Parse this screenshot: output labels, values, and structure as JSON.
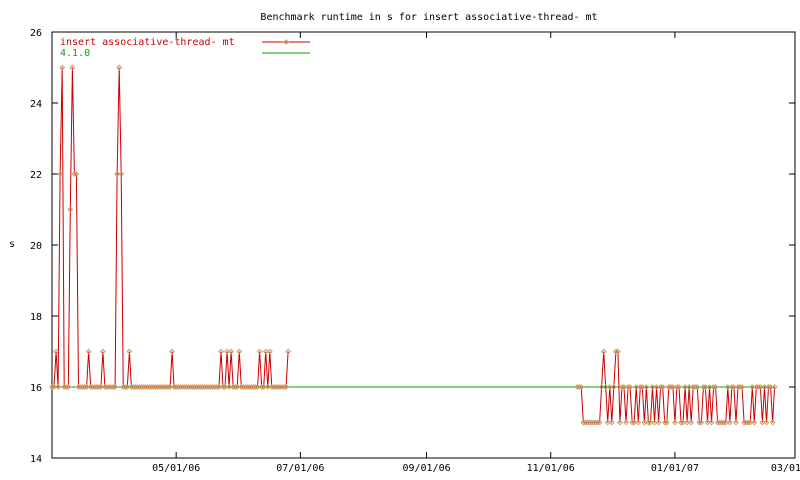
{
  "colors": {
    "series_line": "#cc0000",
    "series_marker": "#cc9966",
    "baseline": "#00aa00",
    "axis": "#000000",
    "background": "#ffffff"
  },
  "chart_data": {
    "type": "line",
    "title": "Benchmark runtime in s for insert associative-thread-  mt",
    "ylabel": "s",
    "xlabel": "",
    "ylim": [
      14,
      26
    ],
    "xlim": [
      "2006-03-01",
      "2007-03-01"
    ],
    "yticks": [
      14,
      16,
      18,
      20,
      22,
      24,
      26
    ],
    "xticks": [
      "2006-05-01",
      "2006-07-01",
      "2006-09-01",
      "2006-11-01",
      "2007-01-01",
      "2007-03-01"
    ],
    "xtick_labels": [
      "05/01/06",
      "07/01/06",
      "09/01/06",
      "11/01/06",
      "01/01/07",
      "03/01/07"
    ],
    "grid": false,
    "legend_position": "top-left",
    "series": [
      {
        "name": "insert associative-thread-  mt",
        "markers": true,
        "x": [
          "2006-03-01",
          "2006-03-02",
          "2006-03-03",
          "2006-03-04",
          "2006-03-05",
          "2006-03-06",
          "2006-03-07",
          "2006-03-08",
          "2006-03-09",
          "2006-03-10",
          "2006-03-11",
          "2006-03-12",
          "2006-03-13",
          "2006-03-14",
          "2006-03-15",
          "2006-03-16",
          "2006-03-17",
          "2006-03-18",
          "2006-03-19",
          "2006-03-20",
          "2006-03-21",
          "2006-03-22",
          "2006-03-23",
          "2006-03-24",
          "2006-03-25",
          "2006-03-26",
          "2006-03-27",
          "2006-03-28",
          "2006-03-29",
          "2006-03-30",
          "2006-03-31",
          "2006-04-01",
          "2006-04-02",
          "2006-04-03",
          "2006-04-04",
          "2006-04-05",
          "2006-04-06",
          "2006-04-07",
          "2006-04-08",
          "2006-04-09",
          "2006-04-10",
          "2006-04-11",
          "2006-04-12",
          "2006-04-13",
          "2006-04-14",
          "2006-04-15",
          "2006-04-16",
          "2006-04-17",
          "2006-04-18",
          "2006-04-19",
          "2006-04-20",
          "2006-04-21",
          "2006-04-22",
          "2006-04-23",
          "2006-04-24",
          "2006-04-25",
          "2006-04-26",
          "2006-04-27",
          "2006-04-28",
          "2006-04-29",
          "2006-04-30",
          "2006-05-01",
          "2006-05-02",
          "2006-05-03",
          "2006-05-04",
          "2006-05-05",
          "2006-05-06",
          "2006-05-07",
          "2006-05-08",
          "2006-05-09",
          "2006-05-10",
          "2006-05-11",
          "2006-05-12",
          "2006-05-13",
          "2006-05-14",
          "2006-05-15",
          "2006-05-16",
          "2006-05-17",
          "2006-05-18",
          "2006-05-19",
          "2006-05-20",
          "2006-05-21",
          "2006-05-22",
          "2006-05-23",
          "2006-05-24",
          "2006-05-25",
          "2006-05-26",
          "2006-05-27",
          "2006-05-28",
          "2006-05-29",
          "2006-05-30",
          "2006-05-31",
          "2006-06-01",
          "2006-06-02",
          "2006-06-03",
          "2006-06-04",
          "2006-06-05",
          "2006-06-06",
          "2006-06-07",
          "2006-06-08",
          "2006-06-09",
          "2006-06-10",
          "2006-06-11",
          "2006-06-12",
          "2006-06-13",
          "2006-06-14",
          "2006-06-15",
          "2006-06-16",
          "2006-06-17",
          "2006-06-18",
          "2006-06-19",
          "2006-06-20",
          "2006-06-21",
          "2006-06-22",
          "2006-06-23",
          "2006-06-24",
          "2006-06-25",
          "2006-11-14",
          "2006-11-15",
          "2006-11-16",
          "2006-11-17",
          "2006-11-18",
          "2006-11-19",
          "2006-11-20",
          "2006-11-21",
          "2006-11-22",
          "2006-11-23",
          "2006-11-24",
          "2006-11-25",
          "2006-11-26",
          "2006-11-27",
          "2006-11-28",
          "2006-11-29",
          "2006-11-30",
          "2006-12-01",
          "2006-12-02",
          "2006-12-03",
          "2006-12-04",
          "2006-12-05",
          "2006-12-06",
          "2006-12-07",
          "2006-12-08",
          "2006-12-09",
          "2006-12-10",
          "2006-12-11",
          "2006-12-12",
          "2006-12-13",
          "2006-12-14",
          "2006-12-15",
          "2006-12-16",
          "2006-12-17",
          "2006-12-18",
          "2006-12-19",
          "2006-12-20",
          "2006-12-21",
          "2006-12-22",
          "2006-12-23",
          "2006-12-24",
          "2006-12-25",
          "2006-12-26",
          "2006-12-27",
          "2006-12-28",
          "2006-12-29",
          "2006-12-30",
          "2006-12-31",
          "2007-01-01",
          "2007-01-02",
          "2007-01-03",
          "2007-01-04",
          "2007-01-05",
          "2007-01-06",
          "2007-01-07",
          "2007-01-08",
          "2007-01-09",
          "2007-01-10",
          "2007-01-11",
          "2007-01-12",
          "2007-01-13",
          "2007-01-14",
          "2007-01-15",
          "2007-01-16",
          "2007-01-17",
          "2007-01-18",
          "2007-01-19",
          "2007-01-20",
          "2007-01-21",
          "2007-01-22",
          "2007-01-23",
          "2007-01-24",
          "2007-01-25",
          "2007-01-26",
          "2007-01-27",
          "2007-01-28",
          "2007-01-29",
          "2007-01-30",
          "2007-01-31",
          "2007-02-01",
          "2007-02-02",
          "2007-02-03",
          "2007-02-04",
          "2007-02-05",
          "2007-02-06",
          "2007-02-07",
          "2007-02-08",
          "2007-02-09",
          "2007-02-10",
          "2007-02-11",
          "2007-02-12",
          "2007-02-13",
          "2007-02-14",
          "2007-02-15",
          "2007-02-16",
          "2007-02-17",
          "2007-02-18",
          "2007-02-19"
        ],
        "values": [
          16,
          16,
          17,
          16,
          22,
          25,
          16,
          16,
          16,
          21,
          25,
          22,
          22,
          16,
          16,
          16,
          16,
          16,
          17,
          16,
          16,
          16,
          16,
          16,
          16,
          17,
          16,
          16,
          16,
          16,
          16,
          16,
          22,
          25,
          22,
          16,
          16,
          16,
          17,
          16,
          16,
          16,
          16,
          16,
          16,
          16,
          16,
          16,
          16,
          16,
          16,
          16,
          16,
          16,
          16,
          16,
          16,
          16,
          16,
          17,
          16,
          16,
          16,
          16,
          16,
          16,
          16,
          16,
          16,
          16,
          16,
          16,
          16,
          16,
          16,
          16,
          16,
          16,
          16,
          16,
          16,
          16,
          16,
          17,
          16,
          16,
          17,
          16,
          17,
          16,
          16,
          16,
          17,
          16,
          16,
          16,
          16,
          16,
          16,
          16,
          16,
          16,
          17,
          16,
          16,
          17,
          16,
          17,
          16,
          16,
          16,
          16,
          16,
          16,
          16,
          16,
          17,
          16,
          16,
          16,
          15,
          15,
          15,
          15,
          15,
          15,
          15,
          15,
          15,
          16,
          17,
          16,
          15,
          16,
          15,
          16,
          17,
          17,
          15,
          16,
          16,
          15,
          16,
          16,
          15,
          15,
          16,
          15,
          16,
          16,
          15,
          16,
          15,
          15,
          16,
          15,
          16,
          15,
          16,
          16,
          15,
          15,
          16,
          16,
          16,
          15,
          16,
          16,
          15,
          15,
          16,
          15,
          16,
          15,
          16,
          16,
          16,
          15,
          15,
          16,
          16,
          15,
          16,
          15,
          16,
          16,
          15,
          15,
          15,
          15,
          15,
          16,
          15,
          16,
          16,
          15,
          16,
          16,
          16,
          15,
          15,
          15,
          15,
          16,
          15,
          16,
          16,
          16,
          15,
          16,
          15,
          16,
          16,
          15,
          16
        ]
      },
      {
        "name": "4.1.0",
        "markers": false,
        "x": [
          "2006-03-01",
          "2007-02-19"
        ],
        "values": [
          16,
          16
        ]
      }
    ]
  }
}
